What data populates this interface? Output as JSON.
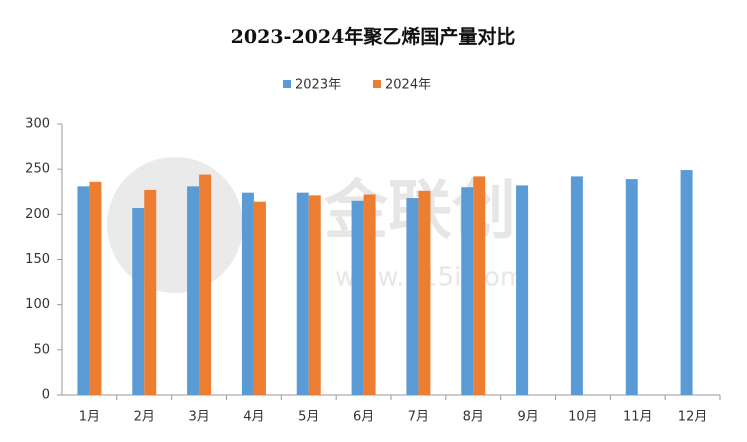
{
  "chart_data": {
    "type": "bar",
    "title": "2023-2024年聚乙烯国产量对比",
    "categories": [
      "1月",
      "2月",
      "3月",
      "4月",
      "5月",
      "6月",
      "7月",
      "8月",
      "9月",
      "10月",
      "11月",
      "12月"
    ],
    "series": [
      {
        "name": "2023年",
        "color": "#5b9bd5",
        "values": [
          231,
          207,
          231,
          224,
          224,
          215,
          218,
          230,
          232,
          242,
          239,
          249
        ]
      },
      {
        "name": "2024年",
        "color": "#ed7d31",
        "values": [
          236,
          227,
          244,
          214,
          221,
          222,
          226,
          242,
          null,
          null,
          null,
          null
        ]
      }
    ],
    "ylim": [
      0,
      300
    ],
    "yticks": [
      0,
      50,
      100,
      150,
      200,
      250,
      300
    ],
    "grid": false,
    "legend": "top",
    "watermark": "金联创",
    "watermark_url": "www.315i.com"
  }
}
